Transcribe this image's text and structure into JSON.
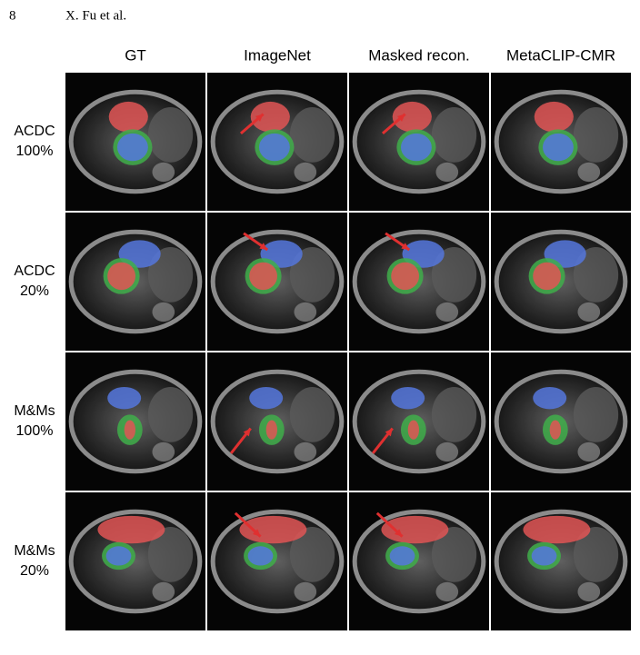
{
  "header": {
    "page_number": "8",
    "authors": "X. Fu et al."
  },
  "figure": {
    "columns": [
      "GT",
      "ImageNet",
      "Masked recon.",
      "MetaCLIP-CMR"
    ],
    "rows": [
      {
        "label": [
          "ACDC",
          "100%"
        ]
      },
      {
        "label": [
          "ACDC",
          "20%"
        ]
      },
      {
        "label": [
          "M&Ms",
          "100%"
        ]
      },
      {
        "label": [
          "M&Ms",
          "20%"
        ]
      }
    ]
  }
}
